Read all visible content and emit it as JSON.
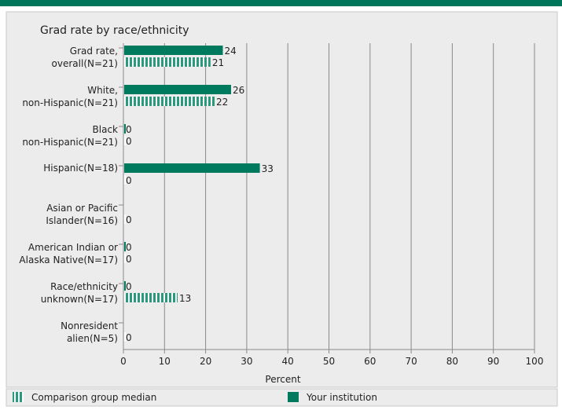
{
  "colors": {
    "institution": "#007a5e",
    "comparison": "#2a9a7e",
    "panel_bg": "#ececec",
    "grid": "#8a8a8a",
    "top_bar": "#00755a"
  },
  "chart_data": {
    "type": "bar",
    "orientation": "horizontal",
    "title": "Grad rate by race/ethnicity",
    "xlabel": "Percent",
    "xlim": [
      0,
      100
    ],
    "xticks": [
      "0",
      "10",
      "20",
      "30",
      "40",
      "50",
      "60",
      "70",
      "80",
      "90",
      "100"
    ],
    "grid": true,
    "legend_position": "bottom",
    "categories": [
      [
        "Grad rate,",
        "overall(N=21)"
      ],
      [
        "White,",
        "non-Hispanic(N=21)"
      ],
      [
        "Black",
        "non-Hispanic(N=21)"
      ],
      [
        "Hispanic(N=18)"
      ],
      [
        "Asian or Pacific",
        "Islander(N=16)"
      ],
      [
        "American Indian or",
        "Alaska Native(N=17)"
      ],
      [
        "Race/ethnicity",
        "unknown(N=17)"
      ],
      [
        "Nonresident",
        "alien(N=5)"
      ]
    ],
    "series": [
      {
        "name": "Your institution",
        "key": "institution",
        "values": [
          24,
          26,
          0,
          33,
          null,
          0,
          0,
          null
        ],
        "labels": [
          "24",
          "26",
          "0",
          "33",
          "",
          "0",
          "0",
          ""
        ]
      },
      {
        "name": "Comparison group median",
        "key": "comparison",
        "values": [
          21,
          22,
          0,
          0,
          0,
          0,
          13,
          0
        ],
        "labels": [
          "21",
          "22",
          "0",
          "0",
          "0",
          "0",
          "13",
          "0"
        ]
      }
    ]
  },
  "legend": {
    "comparison": "Comparison group median",
    "institution": "Your institution"
  }
}
